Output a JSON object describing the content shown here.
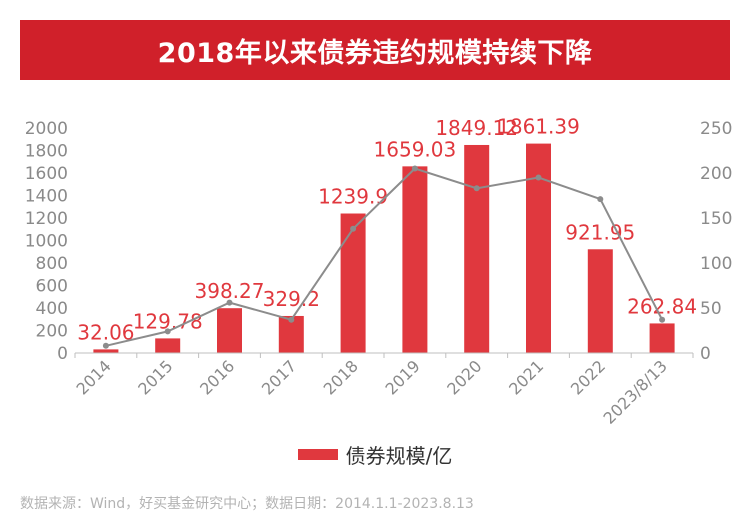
{
  "title": "2018年以来债券违约规模持续下降",
  "colors": {
    "title_bg": "#d0202a",
    "bar": "#e0383e",
    "bar_label": "#e0383e",
    "line": "#8c8c8c",
    "axis_text": "#8a8a8a",
    "grid": "#e4e4e4"
  },
  "chart_data": {
    "type": "bar",
    "categories": [
      "2014",
      "2015",
      "2016",
      "2017",
      "2018",
      "2019",
      "2020",
      "2021",
      "2022",
      "2023/8/13"
    ],
    "series": [
      {
        "name": "债券规模/亿",
        "type": "bar",
        "axis": "left",
        "values": [
          32.06,
          129.78,
          398.27,
          329.2,
          1239.9,
          1659.03,
          1849.12,
          1861.39,
          921.95,
          262.84
        ],
        "labels": [
          "32.06",
          "129.78",
          "398.27",
          "329.2",
          "1239.9",
          "1659.03",
          "1849.12",
          "1861.39",
          "921.95",
          "262.84"
        ]
      },
      {
        "type": "line",
        "axis": "right",
        "values": [
          8,
          24,
          56,
          37,
          138,
          205,
          183,
          195,
          171,
          37
        ]
      }
    ],
    "y_left": {
      "min": 0,
      "max": 2000,
      "ticks": [
        0,
        200,
        400,
        600,
        800,
        1000,
        1200,
        1400,
        1600,
        1800,
        2000
      ]
    },
    "y_right": {
      "min": 0,
      "max": 250,
      "ticks": [
        0,
        50,
        100,
        150,
        200,
        250
      ]
    },
    "grid": false,
    "legend": "bottom"
  },
  "legend": {
    "label": "债券规模/亿"
  },
  "footnote": "数据来源：Wind，好买基金研究中心；数据日期：2014.1.1-2023.8.13"
}
